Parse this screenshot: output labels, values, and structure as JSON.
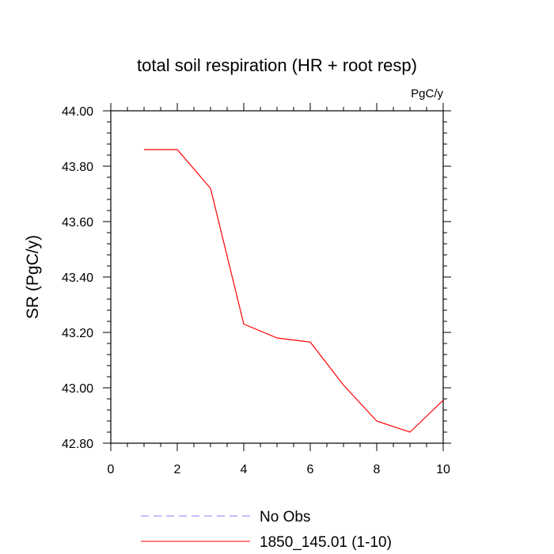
{
  "chart_data": {
    "type": "line",
    "title": "total soil respiration (HR + root resp)",
    "units": "PgC/y",
    "xlabel": "",
    "ylabel": "SR  (PgC/y)",
    "xlim": [
      0,
      10
    ],
    "ylim": [
      42.8,
      44.0
    ],
    "xticks": [
      0,
      2,
      4,
      6,
      8,
      10
    ],
    "xtick_labels": [
      "0",
      "2",
      "4",
      "6",
      "8",
      "10"
    ],
    "yticks": [
      42.8,
      43.0,
      43.2,
      43.4,
      43.6,
      43.8,
      44.0
    ],
    "ytick_labels": [
      "42.80",
      "43.00",
      "43.20",
      "43.40",
      "43.60",
      "43.80",
      "44.00"
    ],
    "grid": false,
    "legend_position": "bottom",
    "series": [
      {
        "name": "1850_145.01 (1-10)",
        "color": "#ff0000",
        "style": "solid",
        "x": [
          1,
          2,
          3,
          4,
          5,
          6,
          7,
          8,
          9,
          10
        ],
        "y": [
          43.86,
          43.86,
          43.72,
          43.23,
          43.18,
          43.165,
          43.01,
          42.88,
          42.84,
          42.955
        ]
      }
    ],
    "legend": [
      {
        "label": "No Obs",
        "color": "#8080ff",
        "style": "dashed"
      },
      {
        "label": "1850_145.01 (1-10)",
        "color": "#ff0000",
        "style": "solid"
      }
    ]
  }
}
